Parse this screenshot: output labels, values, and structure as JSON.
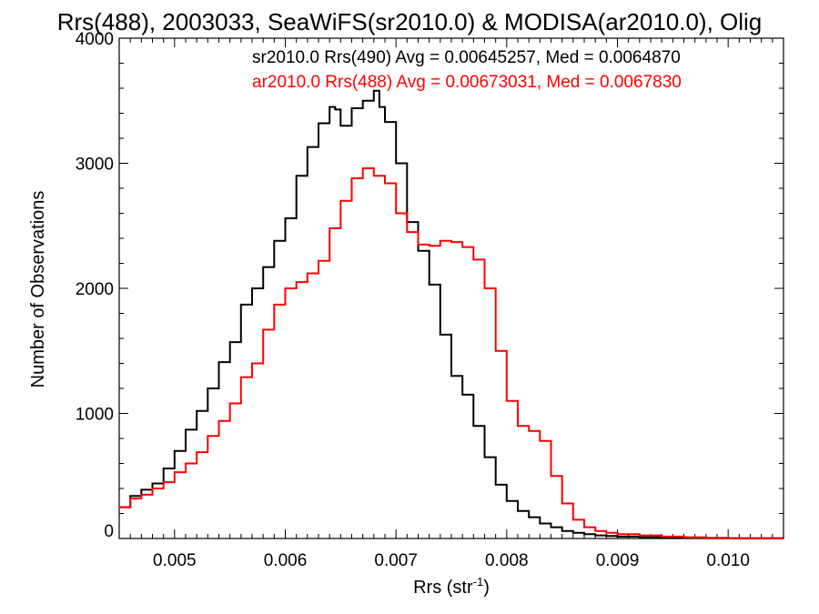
{
  "chart_data": {
    "type": "line",
    "title": "Rrs(488), 2003033, SeaWiFS(sr2010.0) & MODISA(ar2010.0), Olig",
    "xlabel_main": "Rrs (str",
    "xlabel_sup": "-1",
    "xlabel_close": ")",
    "ylabel": "Number of Observations",
    "xlim": [
      0.0045,
      0.0105
    ],
    "ylim": [
      0,
      4000
    ],
    "xticks": [
      0.005,
      0.006,
      0.007,
      0.008,
      0.009,
      0.01
    ],
    "xtick_labels": [
      "0.005",
      "0.006",
      "0.007",
      "0.008",
      "0.009",
      "0.010"
    ],
    "yticks": [
      0,
      1000,
      2000,
      3000,
      4000
    ],
    "ytick_labels": [
      "0",
      "1000",
      "2000",
      "3000",
      "4000"
    ],
    "annotations": [
      "sr2010.0 Rrs(490) Avg = 0.00645257, Med = 0.0064870",
      "ar2010.0 Rrs(488) Avg = 0.00673031, Med = 0.0067830"
    ],
    "series": [
      {
        "color": "#000000",
        "x": [
          0.0045,
          0.0046,
          0.0047,
          0.0048,
          0.0049,
          0.005,
          0.0051,
          0.0052,
          0.0053,
          0.0054,
          0.0055,
          0.0056,
          0.0057,
          0.0058,
          0.0059,
          0.006,
          0.0061,
          0.0062,
          0.0063,
          0.0064,
          0.00645,
          0.0065,
          0.0066,
          0.0067,
          0.0068,
          0.00685,
          0.0069,
          0.007,
          0.0071,
          0.0072,
          0.0073,
          0.0074,
          0.0075,
          0.0076,
          0.0077,
          0.0078,
          0.0079,
          0.008,
          0.0081,
          0.0082,
          0.0083,
          0.0084,
          0.0085,
          0.0086,
          0.0087,
          0.0088,
          0.0089,
          0.009,
          0.0092,
          0.0094,
          0.0096,
          0.0098,
          0.01,
          0.0105
        ],
        "y": [
          250,
          340,
          390,
          440,
          560,
          700,
          870,
          1020,
          1200,
          1410,
          1570,
          1870,
          2000,
          2170,
          2380,
          2560,
          2900,
          3130,
          3320,
          3450,
          3430,
          3300,
          3440,
          3500,
          3580,
          3450,
          3330,
          3000,
          2530,
          2300,
          2030,
          1630,
          1300,
          1150,
          900,
          650,
          430,
          300,
          220,
          170,
          120,
          90,
          60,
          45,
          35,
          25,
          20,
          15,
          10,
          8,
          5,
          3,
          2,
          0
        ]
      },
      {
        "color": "#ff0000",
        "x": [
          0.0045,
          0.0046,
          0.0047,
          0.0048,
          0.0049,
          0.005,
          0.0051,
          0.0052,
          0.0053,
          0.0054,
          0.0055,
          0.0056,
          0.0057,
          0.0058,
          0.0059,
          0.006,
          0.0061,
          0.0062,
          0.0063,
          0.0064,
          0.0065,
          0.0066,
          0.0067,
          0.0068,
          0.0069,
          0.007,
          0.0071,
          0.0072,
          0.0073,
          0.0074,
          0.0075,
          0.0076,
          0.0077,
          0.0078,
          0.0079,
          0.008,
          0.0081,
          0.0082,
          0.0083,
          0.0084,
          0.0085,
          0.0086,
          0.0087,
          0.0088,
          0.0089,
          0.009,
          0.0092,
          0.0094,
          0.0096,
          0.0098,
          0.01,
          0.0105
        ],
        "y": [
          250,
          320,
          350,
          400,
          450,
          530,
          600,
          690,
          820,
          940,
          1080,
          1290,
          1400,
          1670,
          1870,
          2000,
          2050,
          2120,
          2220,
          2480,
          2700,
          2880,
          2960,
          2900,
          2840,
          2600,
          2450,
          2350,
          2340,
          2380,
          2370,
          2330,
          2230,
          2000,
          1500,
          1100,
          900,
          860,
          780,
          500,
          280,
          150,
          90,
          60,
          45,
          35,
          25,
          15,
          10,
          5,
          3,
          0
        ]
      }
    ]
  }
}
